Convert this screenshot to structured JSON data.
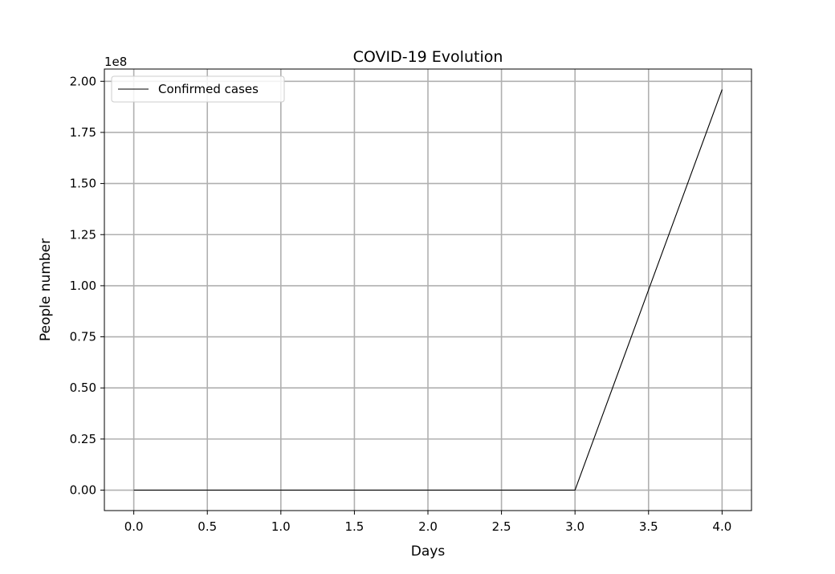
{
  "chart_data": {
    "type": "line",
    "title": "COVID-19 Evolution",
    "xlabel": "Days",
    "ylabel": "People number",
    "y_offset_label": "1e8",
    "xlim": [
      -0.2,
      4.2
    ],
    "ylim": [
      -0.1,
      2.06
    ],
    "xticks": [
      "0.0",
      "0.5",
      "1.0",
      "1.5",
      "2.0",
      "2.5",
      "3.0",
      "3.5",
      "4.0"
    ],
    "yticks": [
      "0.00",
      "0.25",
      "0.50",
      "0.75",
      "1.00",
      "1.25",
      "1.50",
      "1.75",
      "2.00"
    ],
    "grid": true,
    "legend_position": "top-left",
    "series": [
      {
        "name": "Confirmed cases",
        "color": "#000000",
        "x": [
          0,
          1,
          2,
          3,
          4
        ],
        "y": [
          0,
          0,
          0,
          0,
          1.96
        ]
      }
    ]
  }
}
